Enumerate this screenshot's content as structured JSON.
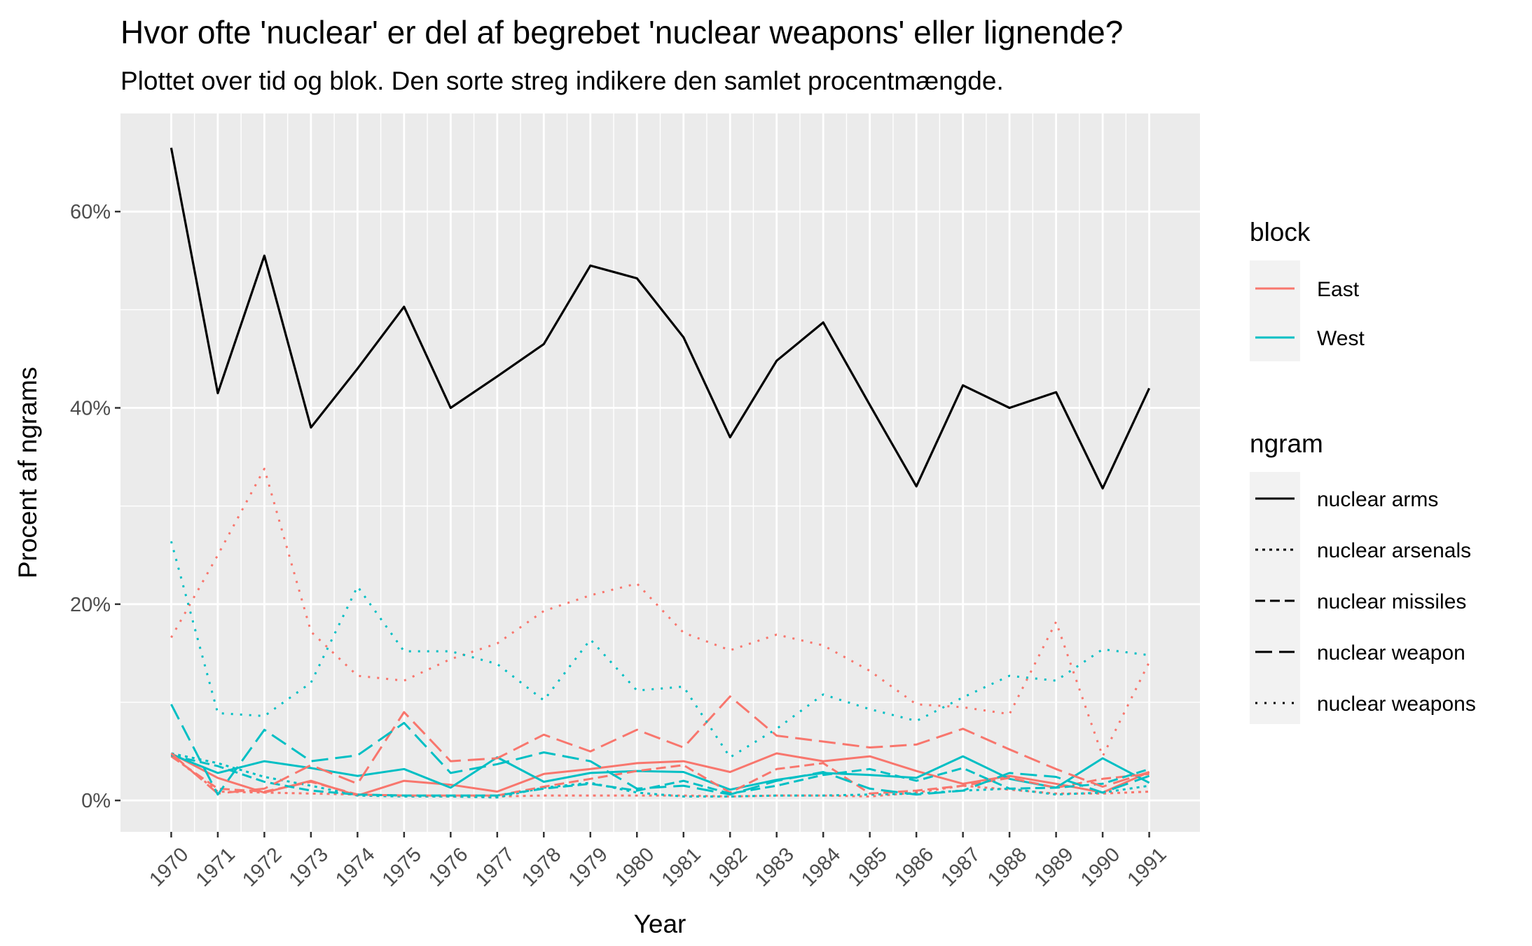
{
  "chart_data": {
    "type": "line",
    "title": "Hvor ofte 'nuclear' er del af begrebet 'nuclear weapons' eller lignende?",
    "subtitle": "Plottet over tid og blok. Den sorte streg indikere den samlet procentmængde.",
    "xlabel": "Year",
    "ylabel": "Procent af ngrams",
    "x": [
      1970,
      1971,
      1972,
      1973,
      1974,
      1975,
      1976,
      1977,
      1978,
      1979,
      1980,
      1981,
      1982,
      1983,
      1984,
      1985,
      1986,
      1987,
      1988,
      1989,
      1990,
      1991
    ],
    "y_ticks": [
      0,
      20,
      40,
      60
    ],
    "y_tick_labels": [
      "0%",
      "20%",
      "40%",
      "60%"
    ],
    "ylim": [
      -3.2,
      70
    ],
    "grid": true,
    "legend_placement": "right",
    "legends": {
      "block": {
        "title": "block",
        "entries": [
          {
            "label": "East",
            "color": "#F8766D"
          },
          {
            "label": "West",
            "color": "#00BFC4"
          }
        ]
      },
      "ngram": {
        "title": "ngram",
        "entries": [
          {
            "label": "nuclear arms",
            "linetype": "solid"
          },
          {
            "label": "nuclear arsenals",
            "linetype": "dotted-short"
          },
          {
            "label": "nuclear missiles",
            "linetype": "dashed"
          },
          {
            "label": "nuclear weapon",
            "linetype": "longdash"
          },
          {
            "label": "nuclear weapons",
            "linetype": "dotted"
          }
        ]
      }
    },
    "series": [
      {
        "ngram": "total",
        "block": "Total",
        "color": "#000000",
        "linetype": "solid",
        "values": [
          66.5,
          41.5,
          55.5,
          38,
          44,
          50.3,
          40,
          43.2,
          46.5,
          54.5,
          53.2,
          47.2,
          37,
          44.8,
          48.7,
          40.3,
          32,
          42.3,
          40,
          41.6,
          31.8,
          42
        ]
      },
      {
        "ngram": "nuclear arms",
        "block": "East",
        "color": "#F8766D",
        "linetype": "solid",
        "values": [
          4.8,
          2.3,
          0.8,
          2,
          0.5,
          2,
          1.6,
          0.9,
          2.7,
          3.2,
          3.8,
          4,
          2.9,
          4.8,
          4,
          4.5,
          3,
          1.7,
          2.5,
          1.7,
          0.8,
          2.9
        ]
      },
      {
        "ngram": "nuclear arms",
        "block": "West",
        "color": "#00BFC4",
        "linetype": "solid",
        "values": [
          4.7,
          2.8,
          4,
          3.3,
          2.5,
          3.2,
          1.3,
          4.4,
          1.9,
          2.8,
          3,
          2.9,
          1.1,
          2.1,
          2.8,
          2.6,
          2.3,
          4.5,
          2.2,
          1.3,
          4.3,
          1.8
        ]
      },
      {
        "ngram": "nuclear arsenals",
        "block": "East",
        "color": "#F8766D",
        "linetype": "dotted-short",
        "values": [
          4.6,
          0.9,
          0.8,
          0.7,
          0.6,
          0.5,
          0.4,
          0.4,
          0.5,
          0.5,
          0.5,
          0.5,
          0.4,
          0.5,
          0.5,
          0.4,
          0.8,
          1.5,
          1.1,
          0.7,
          0.7,
          0.9
        ]
      },
      {
        "ngram": "nuclear arsenals",
        "block": "West",
        "color": "#00BFC4",
        "linetype": "dotted-short",
        "values": [
          4.8,
          3.8,
          2.4,
          1.5,
          0.5,
          0.4,
          0.4,
          0.3,
          1.3,
          1.8,
          0.8,
          0.4,
          0.4,
          0.5,
          0.5,
          0.6,
          0.7,
          1,
          1.2,
          0.6,
          0.8,
          1.5
        ]
      },
      {
        "ngram": "nuclear missiles",
        "block": "East",
        "color": "#F8766D",
        "linetype": "dashed",
        "values": [
          4.5,
          1.2,
          0.9,
          1.9,
          0.6,
          0.5,
          0.5,
          0.5,
          1.4,
          2.2,
          3,
          3.6,
          0.8,
          3.2,
          3.8,
          0.7,
          1,
          1.5,
          2.3,
          1.3,
          2.2,
          2.7
        ]
      },
      {
        "ngram": "nuclear missiles",
        "block": "West",
        "color": "#00BFC4",
        "linetype": "dashed",
        "values": [
          4.6,
          3.5,
          1.9,
          1,
          0.6,
          0.5,
          0.5,
          0.5,
          1.2,
          1.7,
          1,
          2,
          0.7,
          1.5,
          2.6,
          3.2,
          2,
          3.3,
          1.2,
          1.3,
          1.7,
          3.2
        ]
      },
      {
        "ngram": "nuclear weapon",
        "block": "East",
        "color": "#F8766D",
        "linetype": "longdash",
        "values": [
          4.8,
          0.7,
          1.2,
          3.6,
          1.7,
          9,
          4,
          4.3,
          6.7,
          5,
          7.2,
          5.4,
          10.6,
          6.6,
          6,
          5.4,
          5.7,
          7.3,
          5.2,
          3.2,
          1.4,
          2.9
        ]
      },
      {
        "ngram": "nuclear weapon",
        "block": "West",
        "color": "#00BFC4",
        "linetype": "longdash",
        "values": [
          9.8,
          0.6,
          7.2,
          4,
          4.6,
          7.9,
          2.8,
          3.7,
          4.9,
          4,
          1.2,
          1.5,
          0.6,
          2,
          2.9,
          1.2,
          0.6,
          1,
          2.8,
          2.4,
          0.8,
          2.5
        ]
      },
      {
        "ngram": "nuclear weapons",
        "block": "East",
        "color": "#F8766D",
        "linetype": "dotted",
        "values": [
          16.6,
          25,
          33.8,
          17.2,
          12.7,
          12.2,
          14.4,
          16,
          19.3,
          20.9,
          22.1,
          17.1,
          15.3,
          16.9,
          15.8,
          13.2,
          9.8,
          9.5,
          8.8,
          18.2,
          4.5,
          14.1
        ]
      },
      {
        "ngram": "nuclear weapons",
        "block": "West",
        "color": "#00BFC4",
        "linetype": "dotted",
        "values": [
          26.4,
          8.9,
          8.6,
          12,
          21.8,
          15.2,
          15.2,
          13.9,
          10.2,
          16.4,
          11.2,
          11.6,
          4.4,
          7.3,
          10.8,
          9.3,
          8.1,
          10.5,
          12.7,
          12.2,
          15.4,
          14.8
        ]
      }
    ]
  }
}
